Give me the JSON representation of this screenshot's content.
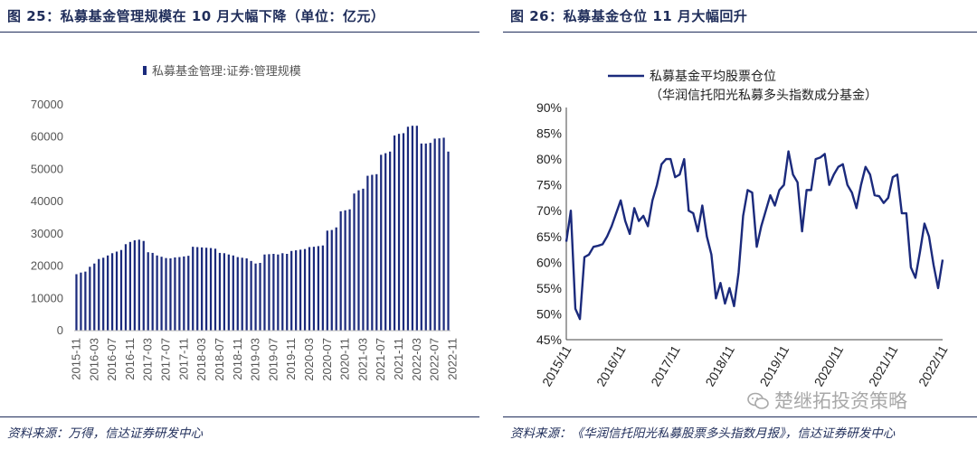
{
  "left_panel": {
    "title": "图 25：私募基金管理规模在 10 月大幅下降（单位：亿元）",
    "source": "资料来源：万得，信达证券研发中心"
  },
  "right_panel": {
    "title": "图 26：私募基金仓位 11 月大幅回升",
    "source": "资料来源：《华润信托阳光私募股票多头指数月报》，信达证券研发中心"
  },
  "watermark": "楚继拓投资策略",
  "colors": {
    "navy": "#1f2d5a",
    "series": "#1b2a7c"
  },
  "chart_data": [
    {
      "type": "bar",
      "title": "",
      "legend": "私募基金管理:证券:管理规模",
      "legend_position": "top",
      "ylim": [
        0,
        70000
      ],
      "yticks": [
        0,
        10000,
        20000,
        30000,
        40000,
        50000,
        60000,
        70000
      ],
      "xticks": [
        "2015-11",
        "2016-03",
        "2016-07",
        "2016-11",
        "2017-03",
        "2017-07",
        "2017-11",
        "2018-03",
        "2018-07",
        "2018-11",
        "2019-03",
        "2019-07",
        "2019-11",
        "2020-03",
        "2020-07",
        "2020-11",
        "2021-03",
        "2021-07",
        "2021-11",
        "2022-03",
        "2022-07",
        "2022-11"
      ],
      "start": "2015-11",
      "values": [
        17500,
        18000,
        18300,
        19800,
        20800,
        22200,
        22600,
        23300,
        24000,
        24500,
        25000,
        26800,
        27500,
        28000,
        28200,
        27800,
        24300,
        24100,
        23300,
        22900,
        22500,
        22400,
        22700,
        22800,
        23000,
        23200,
        26000,
        25900,
        25800,
        25700,
        25600,
        25400,
        24100,
        24000,
        23600,
        23300,
        22800,
        22600,
        22400,
        21600,
        20800,
        21000,
        23600,
        23700,
        23800,
        23600,
        24000,
        23800,
        24700,
        24900,
        25100,
        25300,
        25900,
        26000,
        26200,
        26400,
        31000,
        31200,
        32000,
        37000,
        37300,
        37600,
        42500,
        43500,
        44000,
        48000,
        48300,
        48500,
        54500,
        55000,
        55500,
        60500,
        61000,
        61200,
        63200,
        63500,
        63500,
        58000,
        58000,
        58200,
        59500,
        59600,
        59800,
        55500
      ],
      "xlabel": "",
      "ylabel": ""
    },
    {
      "type": "line",
      "title": "",
      "legend": [
        "私募基金平均股票仓位",
        "（华润信托阳光私募多头指数成分基金）"
      ],
      "legend_position": "top",
      "ylim": [
        45,
        90
      ],
      "yticks": [
        "45%",
        "50%",
        "55%",
        "60%",
        "65%",
        "70%",
        "75%",
        "80%",
        "85%",
        "90%"
      ],
      "xticks": [
        "2015/11",
        "2016/11",
        "2017/11",
        "2018/11",
        "2019/11",
        "2020/11",
        "2021/11",
        "2022/11"
      ],
      "start": "2015/11",
      "series": [
        {
          "name": "私募基金平均股票仓位",
          "values": [
            64,
            70,
            51,
            49,
            61,
            61.5,
            63,
            63.2,
            63.5,
            65,
            67,
            69.5,
            72,
            68,
            65.5,
            70.5,
            68,
            69,
            67,
            72,
            75,
            79,
            80,
            80,
            76.5,
            77,
            80,
            70,
            69.5,
            66,
            71,
            65,
            61.5,
            53,
            56,
            52,
            55,
            51.5,
            58,
            69,
            74,
            73.5,
            63,
            67,
            70,
            73,
            71,
            74,
            75,
            81.5,
            77,
            75.5,
            66,
            74,
            74,
            80,
            80.3,
            81,
            75,
            77,
            78.5,
            79,
            75,
            73.5,
            70.5,
            75,
            78.5,
            77,
            73,
            72.8,
            71.5,
            72.5,
            76.5,
            77,
            69.5,
            69.5,
            59,
            57,
            62,
            67.5,
            65,
            59.5,
            55,
            60.5
          ]
        }
      ],
      "xlabel": "",
      "ylabel": ""
    }
  ]
}
